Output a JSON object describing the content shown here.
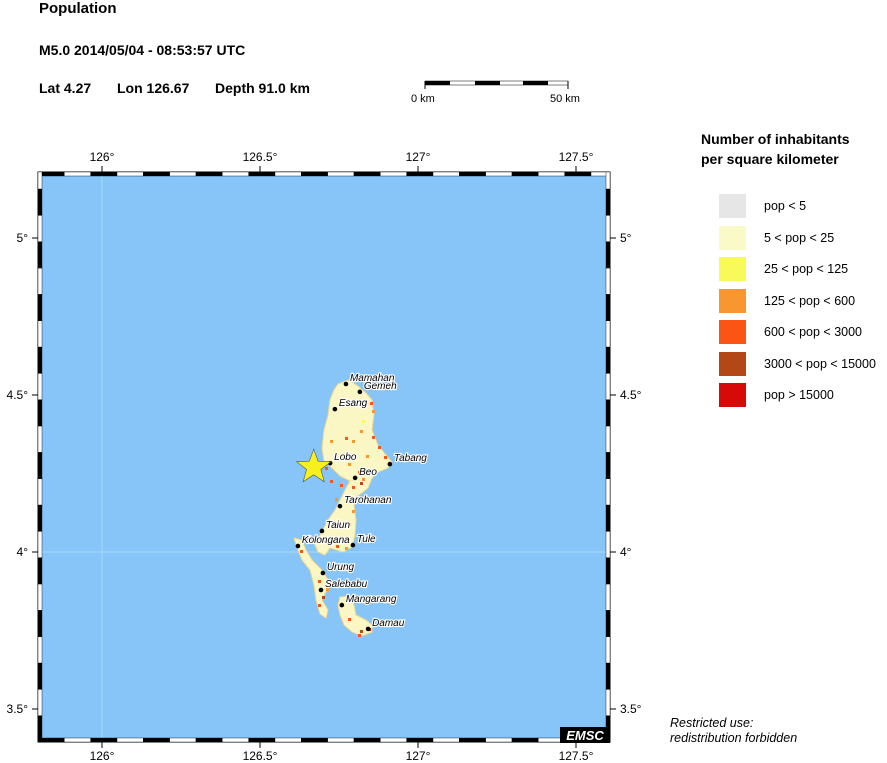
{
  "header": {
    "title": "Population",
    "event": "M5.0  2014/05/04 - 08:53:57 UTC",
    "lat": "Lat  4.27",
    "lon": "Lon 126.67",
    "depth": "Depth  91.0 km"
  },
  "scale_bar": {
    "start_label": "0 km",
    "end_label": "50 km"
  },
  "map": {
    "lon_range": [
      125.8,
      127.6
    ],
    "lat_range": [
      3.4,
      5.21
    ],
    "lon_ticks": [
      {
        "value": 126,
        "label": "126°"
      },
      {
        "value": 126.5,
        "label": "126.5°"
      },
      {
        "value": 127,
        "label": "127°"
      },
      {
        "value": 127.5,
        "label": "127.5°"
      }
    ],
    "lat_ticks": [
      {
        "value": 5,
        "label": "5°"
      },
      {
        "value": 4.5,
        "label": "4.5°"
      },
      {
        "value": 4,
        "label": "4°"
      },
      {
        "value": 3.5,
        "label": "3.5°"
      }
    ],
    "sea_color": "#87c5f8",
    "land_color": "#fbf7c4",
    "epicenter": {
      "lon": 126.67,
      "lat": 4.27,
      "icon": "star-icon",
      "color": "#f6f01e"
    },
    "towns": [
      {
        "name": "Mamahan",
        "lon": 126.772,
        "lat": 4.535
      },
      {
        "name": "Gemeh",
        "lon": 126.816,
        "lat": 4.51
      },
      {
        "name": "Esang",
        "lon": 126.737,
        "lat": 4.455
      },
      {
        "name": "Lobo",
        "lon": 126.722,
        "lat": 4.283
      },
      {
        "name": "Tabang",
        "lon": 126.911,
        "lat": 4.28
      },
      {
        "name": "Beo",
        "lon": 126.801,
        "lat": 4.236
      },
      {
        "name": "Tarohanan",
        "lon": 126.753,
        "lat": 4.146
      },
      {
        "name": "Taiun",
        "lon": 126.696,
        "lat": 4.067
      },
      {
        "name": "Kolongana",
        "lon": 126.62,
        "lat": 4.019
      },
      {
        "name": "Tule",
        "lon": 126.794,
        "lat": 4.022
      },
      {
        "name": "Urung",
        "lon": 126.699,
        "lat": 3.933
      },
      {
        "name": "Salebabu",
        "lon": 126.693,
        "lat": 3.879
      },
      {
        "name": "Mangarang",
        "lon": 126.759,
        "lat": 3.831
      },
      {
        "name": "Damau",
        "lon": 126.842,
        "lat": 3.755
      }
    ],
    "watermark": "EMSC"
  },
  "legend": {
    "title_line1": "Number of inhabitants",
    "title_line2": "per square kilometer",
    "items": [
      {
        "label": "pop < 5",
        "color": "#e6e6e6"
      },
      {
        "label": "5 < pop < 25",
        "color": "#fafac8"
      },
      {
        "label": "25 < pop < 125",
        "color": "#f9f95a"
      },
      {
        "label": "125 < pop < 600",
        "color": "#f8962f"
      },
      {
        "label": "600 < pop < 3000",
        "color": "#fb5516"
      },
      {
        "label": "3000 < pop < 15000",
        "color": "#b44716"
      },
      {
        "label": "pop > 15000",
        "color": "#d70a0a"
      }
    ]
  },
  "note": {
    "line1": "Restricted use:",
    "line2": "redistribution forbidden"
  }
}
